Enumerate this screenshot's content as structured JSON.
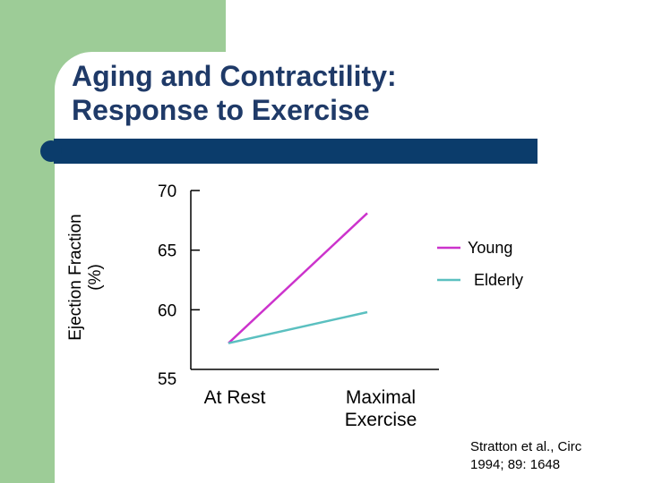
{
  "slide": {
    "title_line1": "Aging and Contractility:",
    "title_line2": "Response to Exercise",
    "citation_line1": "Stratton et al., Circ",
    "citation_line2": "1994; 89: 1648"
  },
  "colors": {
    "green": "#9dcc97",
    "navy": "#0b3c6b",
    "title": "#1f3a68",
    "young": "#cc33cc",
    "elderly": "#5bc0c0"
  },
  "chart_data": {
    "type": "line",
    "title": "",
    "categories": [
      "At Rest",
      "Maximal Exercise"
    ],
    "category_lines": [
      [
        "At Rest"
      ],
      [
        "Maximal",
        "Exercise"
      ]
    ],
    "ylabel_lines": [
      "Ejection Fraction",
      "(%)"
    ],
    "xlabel": "",
    "ylim": [
      55,
      70
    ],
    "yticks": [
      55,
      60,
      65,
      70
    ],
    "legend_position": "right",
    "series": [
      {
        "name": "Young",
        "values": [
          57.2,
          68.1
        ],
        "color": "#cc33cc"
      },
      {
        "name": "Elderly",
        "values": [
          57.2,
          59.8
        ],
        "color": "#5bc0c0"
      }
    ]
  }
}
